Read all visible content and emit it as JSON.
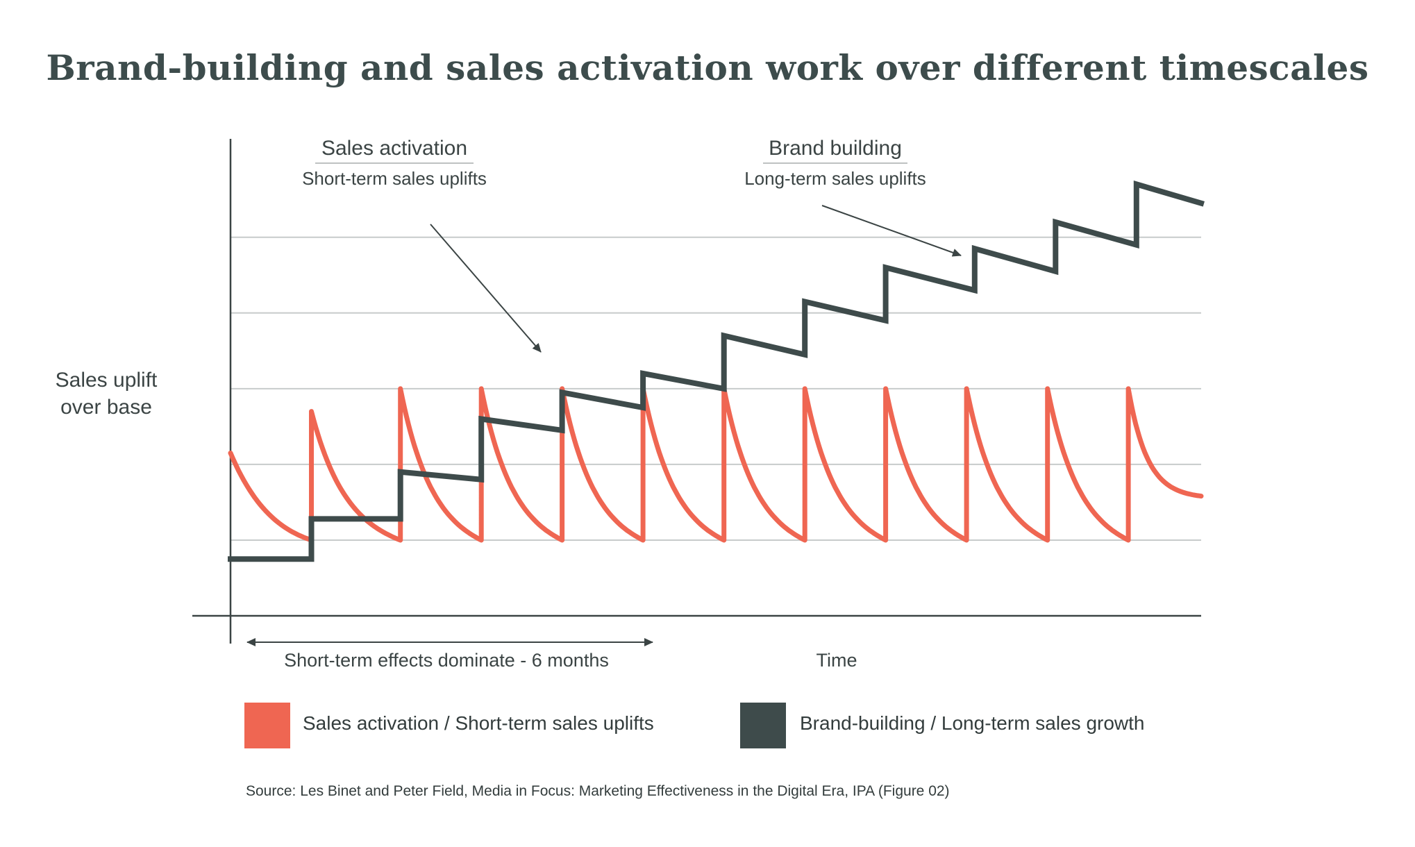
{
  "title": "Brand-building and sales activation work over different timescales",
  "colors": {
    "sales_activation": "#ef6652",
    "brand_building": "#3e4b4b",
    "grid": "#c7cbcb",
    "axis": "#3b4444"
  },
  "annotations": {
    "sales_activation_heading": "Sales activation",
    "sales_activation_sub": "Short-term sales uplifts",
    "brand_building_heading": "Brand building",
    "brand_building_sub": "Long-term sales uplifts",
    "short_term_span": "Short-term effects dominate - 6 months"
  },
  "legend": {
    "sales_activation": "Sales activation / Short-term sales uplifts",
    "brand_building": "Brand-building / Long-term sales growth"
  },
  "source": "Source: Les Binet and Peter Field, Media in Focus: Marketing Effectiveness in the Digital Era, IPA (Figure 02)",
  "chart_data": {
    "type": "line",
    "title": "Brand-building and sales activation work over different timescales",
    "xlabel": "Time",
    "ylabel_lines": [
      "Sales uplift",
      "over base"
    ],
    "xlim": [
      0,
      12
    ],
    "ylim": [
      0,
      6.3
    ],
    "grid": true,
    "gridlines_y": [
      1,
      2,
      3,
      4,
      5
    ],
    "ticks_labeled": false,
    "legend_position": "bottom",
    "series": [
      {
        "name": "Sales activation / Short-term sales uplifts",
        "shape": "decaying-pulses",
        "start_level": 2.15,
        "trough_level": 1.0,
        "pulses": [
          {
            "x": 1.0,
            "peak": 2.7
          },
          {
            "x": 2.1,
            "peak": 3.0
          },
          {
            "x": 3.1,
            "peak": 3.0
          },
          {
            "x": 4.1,
            "peak": 3.0
          },
          {
            "x": 5.1,
            "peak": 3.0
          },
          {
            "x": 6.1,
            "peak": 3.0
          },
          {
            "x": 7.1,
            "peak": 3.0
          },
          {
            "x": 8.1,
            "peak": 3.0
          },
          {
            "x": 9.1,
            "peak": 3.0
          },
          {
            "x": 10.1,
            "peak": 3.0
          },
          {
            "x": 11.1,
            "peak": 3.0
          }
        ],
        "end_level": 1.55
      },
      {
        "name": "Brand-building / Long-term sales growth",
        "shape": "sawtooth-growth",
        "points": [
          [
            0.0,
            0.75
          ],
          [
            1.0,
            0.75
          ],
          [
            1.0,
            1.28
          ],
          [
            2.1,
            1.28
          ],
          [
            2.1,
            1.9
          ],
          [
            3.1,
            1.8
          ],
          [
            3.1,
            2.6
          ],
          [
            4.1,
            2.45
          ],
          [
            4.1,
            2.95
          ],
          [
            5.1,
            2.75
          ],
          [
            5.1,
            3.2
          ],
          [
            6.1,
            3.0
          ],
          [
            6.1,
            3.7
          ],
          [
            7.1,
            3.45
          ],
          [
            7.1,
            4.15
          ],
          [
            8.1,
            3.9
          ],
          [
            8.1,
            4.6
          ],
          [
            9.2,
            4.3
          ],
          [
            9.2,
            4.85
          ],
          [
            10.2,
            4.55
          ],
          [
            10.2,
            5.2
          ],
          [
            11.2,
            4.9
          ],
          [
            11.2,
            5.7
          ],
          [
            12.0,
            5.45
          ]
        ]
      }
    ]
  }
}
